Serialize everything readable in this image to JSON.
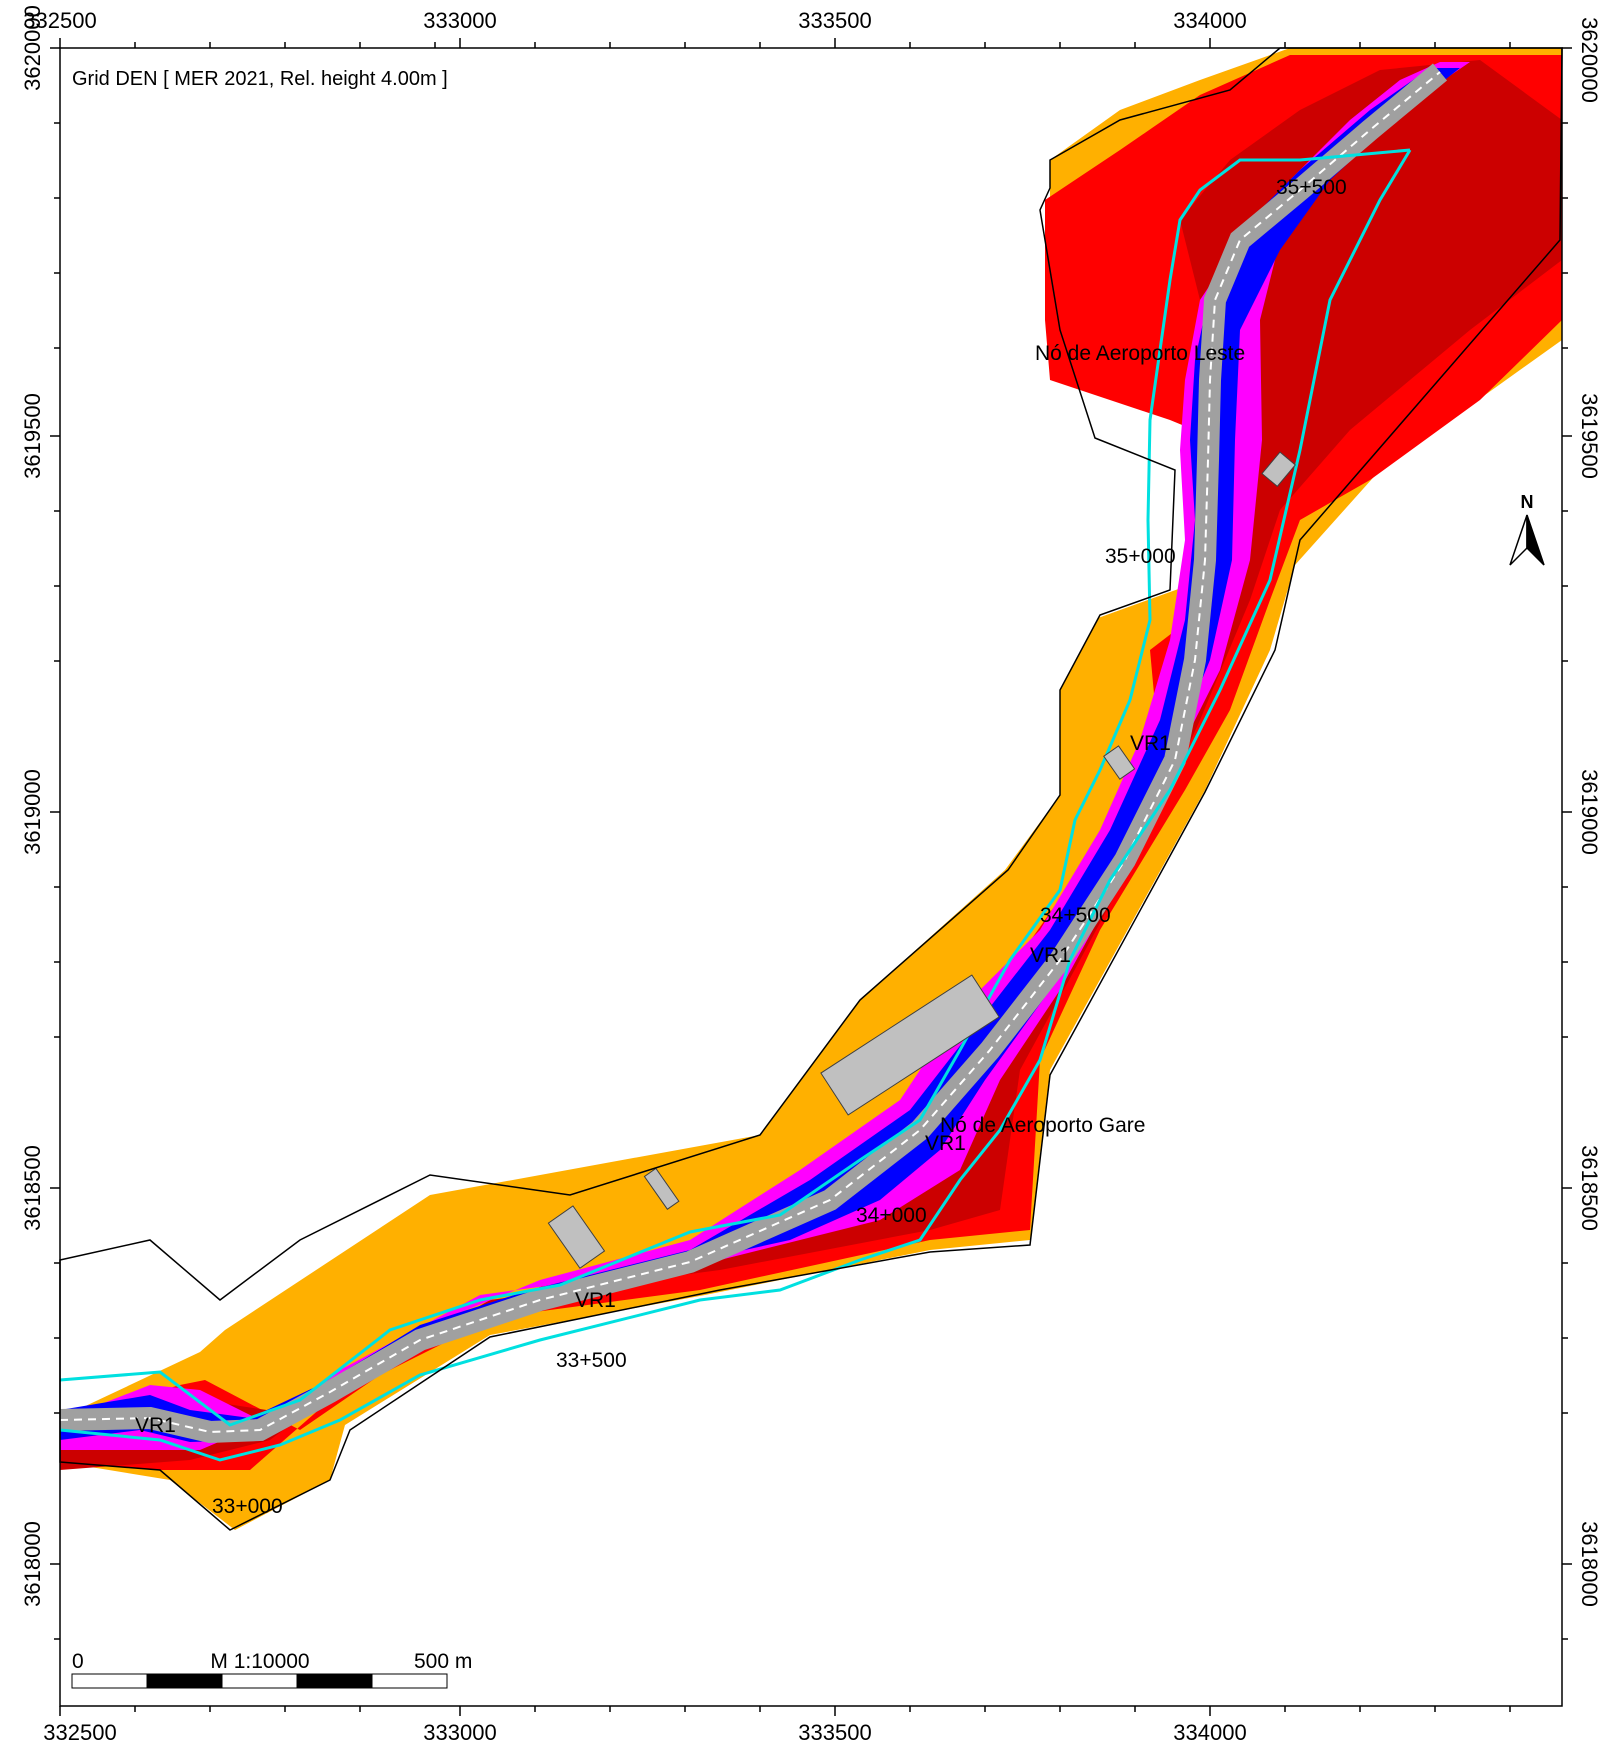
{
  "map": {
    "title": "Grid DEN  [ MER 2021, Rel. height  4.00m ]",
    "x_ticks": [
      "332500",
      "333000",
      "333500",
      "334000"
    ],
    "y_ticks": [
      "3620000",
      "3619500",
      "3619000",
      "3618500",
      "3618000"
    ],
    "north_label": "N",
    "place_labels": {
      "no_aeroporto_leste": "Nó de Aeroporto Leste",
      "no_aeroporto_gare": "Nó de Aeroporto Gare"
    },
    "road_labels": {
      "vr1": "VR1"
    },
    "chainage_labels": {
      "km_33_000": "33+000",
      "km_33_500": "33+500",
      "km_34_000": "34+000",
      "km_34_500": "34+500",
      "km_35_000": "35+000",
      "km_35_500": "35+500"
    },
    "scale_bar": {
      "start_label": "0",
      "scale_label": "M 1:10000",
      "end_label": "500 m"
    },
    "colors": {
      "orange": "#ffb000",
      "red": "#ff0000",
      "dark_red": "#cc0000",
      "magenta": "#ff00ff",
      "purple": "#b000e0",
      "blue": "#0000ff",
      "road_gray": "#a0a0a0",
      "cyan": "#00e0e0",
      "building_gray": "#c0c0c0"
    }
  }
}
